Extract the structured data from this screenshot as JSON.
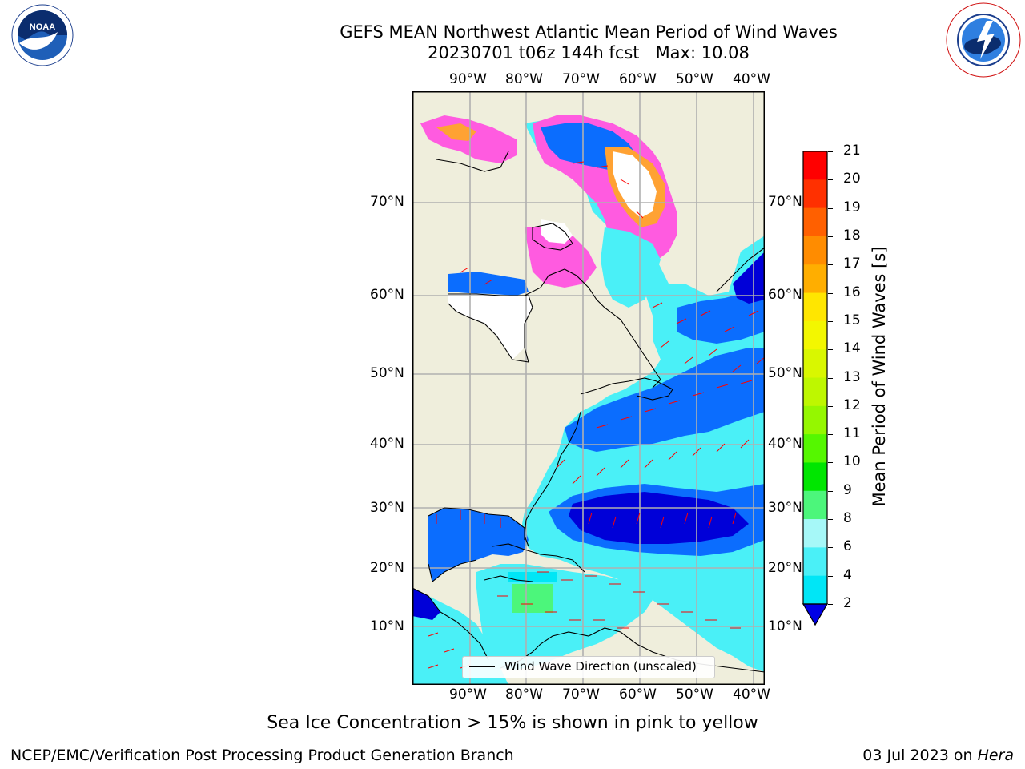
{
  "header": {
    "title_line1": "GEFS MEAN Northwest Atlantic Mean Period of Wind Waves",
    "title_line2": "20230701 t06z 144h fcst   Max: 10.08"
  },
  "logos": {
    "left": "NOAA",
    "left_ring": "NATIONAL OCEANIC AND ATMOSPHERIC ADMINISTRATION · U.S. DEPARTMENT OF COMMERCE",
    "right_ring": "NATIONAL WEATHER SERVICE"
  },
  "map": {
    "lon_labels": [
      "90°W",
      "80°W",
      "70°W",
      "60°W",
      "50°W",
      "40°W"
    ],
    "lat_labels": [
      "70°N",
      "60°N",
      "50°N",
      "40°N",
      "30°N",
      "20°N",
      "10°N"
    ],
    "legend_label": "Wind Wave Direction (unscaled)",
    "colors": {
      "land": "#efeedc",
      "ocean_low": "#0000d8",
      "ocean_2": "#0b6dfe",
      "ocean_4": "#00e6f6",
      "ocean_6": "#4af0f7",
      "ocean_8": "#a6f8f8",
      "ocean_10": "#4cf67b",
      "arrows": "#ff0000",
      "ice_pink": "#ff5be0",
      "ice_orange": "#ffa233"
    }
  },
  "colorbar": {
    "title": "Mean Period of Wind Waves [s]",
    "ticks": [
      "21",
      "20",
      "19",
      "18",
      "17",
      "16",
      "15",
      "14",
      "13",
      "12",
      "11",
      "10",
      "9",
      "8",
      "6",
      "4",
      "2"
    ],
    "colors": [
      "#ff0000",
      "#ff3000",
      "#ff6000",
      "#ff8c00",
      "#ffae00",
      "#ffe600",
      "#f3f700",
      "#d9f700",
      "#bef700",
      "#95f700",
      "#55f700",
      "#00e600",
      "#4cf67b",
      "#a6f8f8",
      "#4af0f7",
      "#00e6f6",
      "#0b6dfe",
      "#0000e6"
    ]
  },
  "caption": "Sea Ice Concentration > 15% is shown in pink to yellow",
  "footer": {
    "left": "NCEP/EMC/Verification Post Processing Product Generation Branch",
    "right_date": "03 Jul 2023 on ",
    "right_host": "Hera"
  }
}
